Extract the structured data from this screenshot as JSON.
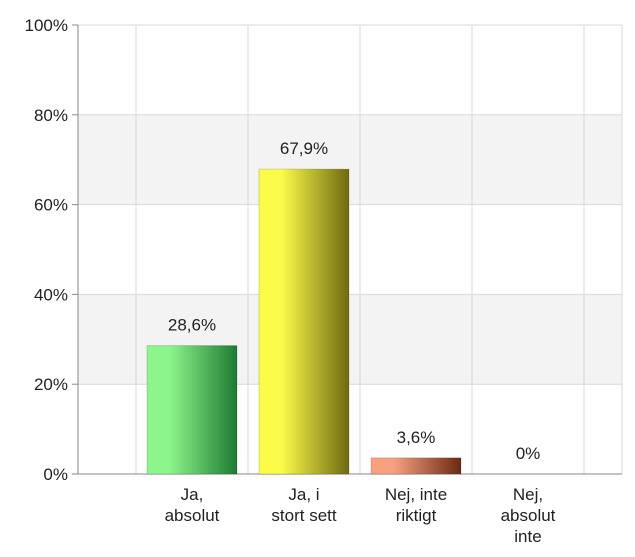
{
  "chart_data": {
    "type": "bar",
    "categories": [
      [
        "Ja,",
        "absolut"
      ],
      [
        "Ja, i",
        "stort sett"
      ],
      [
        "Nej, inte",
        "riktigt"
      ],
      [
        "Nej,",
        "absolut",
        "inte"
      ]
    ],
    "values": [
      28.6,
      67.9,
      3.6,
      0
    ],
    "value_labels": [
      "28,6%",
      "67,9%",
      "3,6%",
      "0%"
    ],
    "bar_colors": [
      [
        "#8cf58c",
        "#1e7a32"
      ],
      [
        "#fbfb4a",
        "#6f6a10"
      ],
      [
        "#f8a080",
        "#6a2a14"
      ],
      [
        "#cccccc",
        "#666666"
      ]
    ],
    "ylim": [
      0,
      100
    ],
    "yticks": [
      0,
      20,
      40,
      60,
      80,
      100
    ],
    "ytick_labels": [
      "0%",
      "20%",
      "40%",
      "60%",
      "80%",
      "100%"
    ],
    "grid": true,
    "title": "",
    "xlabel": "",
    "ylabel": ""
  }
}
